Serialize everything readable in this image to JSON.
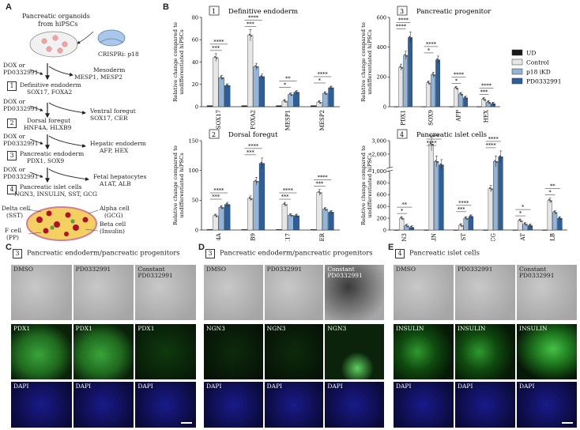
{
  "panel_labels": {
    "a": "A",
    "b": "B",
    "c": "C",
    "d": "D",
    "e": "E"
  },
  "schematic": {
    "title_l1": "Pancreatic organoids",
    "title_l2": "from hiPSCs",
    "crispr": "CRISPRi: p18",
    "treat": "DOX or",
    "treat2": "PD0332991",
    "stages": [
      {
        "num": "1",
        "name": "Definitive endoderm",
        "markers": "SOX17, FOXA2"
      },
      {
        "num": "2",
        "name": "Dorsal foregut",
        "markers": "HNF4A, HLXB9"
      },
      {
        "num": "3",
        "name": "Pancreatic endoderm",
        "markers": "PDX1, SOX9"
      },
      {
        "num": "4",
        "name": "Pancreatic islet cells",
        "markers": "NGN3, INSULIN, SST, GCG"
      }
    ],
    "side": [
      {
        "name": "Mesoderm",
        "markers": "MESP1, MESP2"
      },
      {
        "name": "Ventral foregut",
        "markers": "SOX17, CER"
      },
      {
        "name": "Hepatic endoderm",
        "markers": "AFP, HEX"
      },
      {
        "name": "Fetal hepatocytes",
        "markers": "A1AT, ALB"
      }
    ],
    "cells": {
      "delta": "Delta cell",
      "delta_sub": "(SST)",
      "alpha": "Alpha cell",
      "alpha_sub": "(GCG)",
      "beta": "Beta cell",
      "beta_sub": "(Insulin)",
      "f": "F cell",
      "f_sub": "(PP)"
    }
  },
  "legend": [
    "UD",
    "Control",
    "p18 iKD",
    "PD0332991"
  ],
  "colors": {
    "UD": "#1a1a1a",
    "Control": "#e6e6e6",
    "p18 iKD": "#93b5d8",
    "PD0332991": "#2d5f9a"
  },
  "ylabel_l1": "Relative change compared to",
  "ylabel_l2": "undifferentiated hiPSCs",
  "chart_data": [
    {
      "type": "bar",
      "num": "1",
      "title": "Definitive endoderm",
      "categories": [
        "SOX17",
        "FOXA2",
        "MESP1",
        "MESP2"
      ],
      "ylim": [
        0,
        80
      ],
      "yticks": [
        0,
        20,
        40,
        60,
        80
      ],
      "series": [
        {
          "name": "UD",
          "values": [
            1,
            1,
            1,
            1
          ]
        },
        {
          "name": "Control",
          "values": [
            44,
            64,
            5,
            4
          ]
        },
        {
          "name": "p18 iKD",
          "values": [
            26,
            36,
            11,
            12
          ]
        },
        {
          "name": "PD0332991",
          "values": [
            19,
            27,
            13,
            17
          ]
        }
      ],
      "sig": [
        {
          "cat": 0,
          "labels": [
            "****",
            "***"
          ]
        },
        {
          "cat": 1,
          "labels": [
            "****",
            "***"
          ]
        },
        {
          "cat": 2,
          "labels": [
            "**",
            "*"
          ]
        },
        {
          "cat": 3,
          "labels": [
            "****",
            "*"
          ]
        }
      ]
    },
    {
      "type": "bar",
      "num": "3",
      "title": "Pancreatic progenitor",
      "categories": [
        "PDX1",
        "SOX9",
        "AFP",
        "HEX"
      ],
      "ylim": [
        0,
        600
      ],
      "yticks": [
        0,
        200,
        400,
        600
      ],
      "series": [
        {
          "name": "UD",
          "values": [
            1,
            1,
            1,
            1
          ]
        },
        {
          "name": "Control",
          "values": [
            265,
            160,
            125,
            50
          ]
        },
        {
          "name": "p18 iKD",
          "values": [
            345,
            215,
            85,
            30
          ]
        },
        {
          "name": "PD0332991",
          "values": [
            465,
            315,
            60,
            20
          ]
        }
      ],
      "sig": [
        {
          "cat": 0,
          "labels": [
            "****",
            "****"
          ]
        },
        {
          "cat": 1,
          "labels": [
            "****",
            "*"
          ]
        },
        {
          "cat": 2,
          "labels": [
            "****",
            "*"
          ]
        },
        {
          "cat": 3,
          "labels": [
            "****",
            "***"
          ]
        }
      ]
    },
    {
      "type": "bar",
      "num": "2",
      "title": "Dorsal foregut",
      "categories": [
        "HNF4A",
        "HLXB9",
        "SOX17",
        "CER"
      ],
      "ylim": [
        0,
        150
      ],
      "yticks": [
        0,
        50,
        100,
        150
      ],
      "series": [
        {
          "name": "UD",
          "values": [
            1,
            1,
            1,
            1
          ]
        },
        {
          "name": "Control",
          "values": [
            24,
            53,
            43,
            63
          ]
        },
        {
          "name": "p18 iKD",
          "values": [
            38,
            82,
            25,
            35
          ]
        },
        {
          "name": "PD0332991",
          "values": [
            43,
            112,
            24,
            30
          ]
        }
      ],
      "sig": [
        {
          "cat": 0,
          "labels": [
            "****",
            "***"
          ]
        },
        {
          "cat": 1,
          "labels": [
            "****",
            "***"
          ]
        },
        {
          "cat": 2,
          "labels": [
            "****",
            "***"
          ]
        },
        {
          "cat": 3,
          "labels": [
            "****",
            "***"
          ]
        }
      ]
    },
    {
      "type": "bar",
      "num": "4",
      "title": "Pancreatic islet cells",
      "categories": [
        "NGN3",
        "INSULIN",
        "SST",
        "GCG",
        "A1AT",
        "ALB"
      ],
      "ylim": [
        0,
        3000
      ],
      "yticks": [
        0,
        200,
        400,
        600,
        800,
        1000,
        2000,
        3000
      ],
      "series": [
        {
          "name": "UD",
          "values": [
            1,
            1,
            1,
            1,
            1,
            1
          ]
        },
        {
          "name": "Control",
          "values": [
            200,
            2750,
            80,
            700,
            160,
            500
          ]
        },
        {
          "name": "p18 iKD",
          "values": [
            70,
            1450,
            200,
            1450,
            100,
            300
          ]
        },
        {
          "name": "PD0332991",
          "values": [
            45,
            1200,
            230,
            1800,
            75,
            200
          ]
        }
      ],
      "sig": [
        {
          "cat": 0,
          "labels": [
            "**",
            "*"
          ]
        },
        {
          "cat": 1,
          "labels": [
            "****",
            "****"
          ]
        },
        {
          "cat": 2,
          "labels": [
            "****",
            "***"
          ]
        },
        {
          "cat": 3,
          "labels": [
            "****",
            "****"
          ]
        },
        {
          "cat": 4,
          "labels": [
            "*",
            "*"
          ]
        },
        {
          "cat": 5,
          "labels": [
            "**",
            "*"
          ]
        }
      ]
    }
  ],
  "micro_panels": [
    {
      "num": "3",
      "title": "Pancreatic endoderm/pancreatic progenitors",
      "cols": [
        "DMSO",
        "PD0332991",
        "Constant PD0332991"
      ],
      "stain": "PDX1",
      "dapi": "DAPI"
    },
    {
      "num": "3",
      "title": "Pancreatic endoderm/pancreatic progenitors",
      "cols": [
        "DMSO",
        "PD0332991",
        "Constant PD0332991"
      ],
      "stain": "NGN3",
      "dapi": "DAPI"
    },
    {
      "num": "4",
      "title": "Pancreatic islet cells",
      "cols": [
        "DMSO",
        "PD0332991",
        "Constant PD0332991"
      ],
      "stain": "INSULIN",
      "dapi": "DAPI"
    }
  ]
}
